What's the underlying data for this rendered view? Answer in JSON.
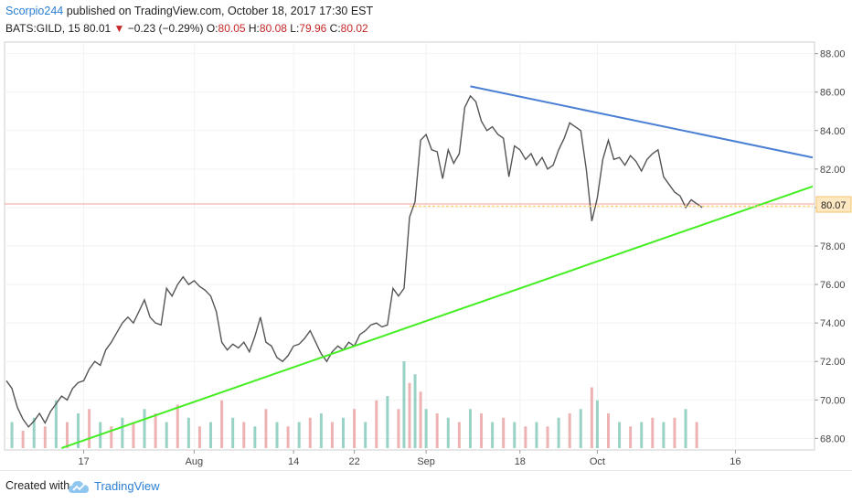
{
  "header": {
    "author": "Scorpio244",
    "published_text": "published on TradingView.com, October 18, 2017 17:30 EST"
  },
  "quote": {
    "symbol": "BATS:GILD, 15",
    "last": "80.01",
    "change": "−0.23 (−0.29%)",
    "o_label": "O:",
    "o_value": "80.05",
    "h_label": "H:",
    "h_value": "80.08",
    "l_label": "L:",
    "l_value": "79.96",
    "c_label": "C:",
    "c_value": "80.02",
    "down_color": "#c62828"
  },
  "footer": {
    "created_with": "Created with",
    "brand": "TradingView"
  },
  "chart_data": {
    "type": "line",
    "y_ticks": [
      68,
      70,
      72,
      74,
      76,
      78,
      80,
      82,
      84,
      86,
      88
    ],
    "y_tick_labels": [
      "68.00",
      "70.00",
      "72.00",
      "74.00",
      "76.00",
      "78.00",
      "80.00",
      "82.00",
      "84.00",
      "86.00",
      "88.00"
    ],
    "ylim": [
      67.4,
      88.6
    ],
    "x_tick_labels": [
      "17",
      "Aug",
      "14",
      "22",
      "Sep",
      "18",
      "Oct",
      "16"
    ],
    "x_tick_index": [
      14,
      34,
      52,
      63,
      76,
      93,
      107,
      132
    ],
    "current_price_label": "80.07",
    "current_price": 80.07,
    "price_series_color": "#555555",
    "price_path": [
      [
        0,
        71.0
      ],
      [
        1,
        70.6
      ],
      [
        2,
        69.6
      ],
      [
        3,
        69.0
      ],
      [
        4,
        68.6
      ],
      [
        5,
        68.9
      ],
      [
        6,
        69.3
      ],
      [
        7,
        68.8
      ],
      [
        8,
        69.4
      ],
      [
        9,
        69.8
      ],
      [
        10,
        70.2
      ],
      [
        11,
        70.0
      ],
      [
        12,
        70.6
      ],
      [
        13,
        70.9
      ],
      [
        14,
        71.0
      ],
      [
        15,
        71.6
      ],
      [
        16,
        72.0
      ],
      [
        17,
        71.8
      ],
      [
        18,
        72.6
      ],
      [
        19,
        73.0
      ],
      [
        20,
        73.5
      ],
      [
        21,
        74.0
      ],
      [
        22,
        74.3
      ],
      [
        23,
        74.0
      ],
      [
        24,
        74.6
      ],
      [
        25,
        75.2
      ],
      [
        26,
        74.3
      ],
      [
        27,
        74.0
      ],
      [
        28,
        73.9
      ],
      [
        29,
        75.8
      ],
      [
        30,
        75.4
      ],
      [
        31,
        76.0
      ],
      [
        32,
        76.4
      ],
      [
        33,
        76.0
      ],
      [
        34,
        76.2
      ],
      [
        35,
        75.9
      ],
      [
        36,
        75.7
      ],
      [
        37,
        75.4
      ],
      [
        38,
        74.6
      ],
      [
        39,
        73.0
      ],
      [
        40,
        72.6
      ],
      [
        41,
        72.9
      ],
      [
        42,
        72.7
      ],
      [
        43,
        73.0
      ],
      [
        44,
        72.5
      ],
      [
        45,
        73.3
      ],
      [
        46,
        74.3
      ],
      [
        47,
        73.0
      ],
      [
        48,
        72.8
      ],
      [
        49,
        72.2
      ],
      [
        50,
        72.0
      ],
      [
        51,
        72.3
      ],
      [
        52,
        72.8
      ],
      [
        53,
        72.9
      ],
      [
        54,
        73.2
      ],
      [
        55,
        73.6
      ],
      [
        56,
        73.0
      ],
      [
        57,
        72.4
      ],
      [
        58,
        72.0
      ],
      [
        59,
        72.5
      ],
      [
        60,
        72.8
      ],
      [
        61,
        72.6
      ],
      [
        62,
        73.0
      ],
      [
        63,
        72.8
      ],
      [
        64,
        73.4
      ],
      [
        65,
        73.6
      ],
      [
        66,
        73.9
      ],
      [
        67,
        74.0
      ],
      [
        68,
        73.8
      ],
      [
        69,
        73.9
      ],
      [
        70,
        75.8
      ],
      [
        71,
        75.4
      ],
      [
        72,
        75.8
      ],
      [
        73,
        79.5
      ],
      [
        74,
        80.3
      ],
      [
        75,
        83.5
      ],
      [
        76,
        83.8
      ],
      [
        77,
        83.0
      ],
      [
        78,
        82.9
      ],
      [
        79,
        81.5
      ],
      [
        80,
        83.0
      ],
      [
        81,
        82.3
      ],
      [
        82,
        82.8
      ],
      [
        83,
        85.2
      ],
      [
        84,
        85.8
      ],
      [
        85,
        85.5
      ],
      [
        86,
        84.5
      ],
      [
        87,
        84.0
      ],
      [
        88,
        84.2
      ],
      [
        89,
        83.8
      ],
      [
        90,
        83.6
      ],
      [
        91,
        81.6
      ],
      [
        92,
        83.2
      ],
      [
        93,
        83.0
      ],
      [
        94,
        82.5
      ],
      [
        95,
        82.8
      ],
      [
        96,
        82.2
      ],
      [
        97,
        82.6
      ],
      [
        98,
        82.0
      ],
      [
        99,
        82.2
      ],
      [
        100,
        83.0
      ],
      [
        101,
        83.6
      ],
      [
        102,
        84.4
      ],
      [
        103,
        84.2
      ],
      [
        104,
        84.0
      ],
      [
        105,
        82.0
      ],
      [
        106,
        79.3
      ],
      [
        107,
        80.5
      ],
      [
        108,
        82.5
      ],
      [
        109,
        83.5
      ],
      [
        110,
        82.5
      ],
      [
        111,
        82.6
      ],
      [
        112,
        82.2
      ],
      [
        113,
        82.7
      ],
      [
        114,
        82.4
      ],
      [
        115,
        81.9
      ],
      [
        116,
        82.5
      ],
      [
        117,
        82.8
      ],
      [
        118,
        83.0
      ],
      [
        119,
        81.6
      ],
      [
        120,
        81.2
      ],
      [
        121,
        80.8
      ],
      [
        122,
        80.6
      ],
      [
        123,
        80.0
      ],
      [
        124,
        80.4
      ],
      [
        125,
        80.2
      ],
      [
        126,
        80.0
      ]
    ],
    "lines": [
      {
        "name": "resistance-trendline",
        "color": "#4a7fd4",
        "from": [
          84,
          86.3
        ],
        "to": [
          146,
          82.6
        ]
      },
      {
        "name": "support-trendline",
        "color": "#44ee22",
        "from": [
          10,
          67.5
        ],
        "to": [
          146,
          81.1
        ]
      },
      {
        "name": "price-level-line",
        "color": "#ffd37a",
        "from": [
          73,
          80.07
        ],
        "to": [
          146,
          80.07
        ]
      }
    ],
    "volume_color_up": "#7fc7b8",
    "volume_color_down": "#e8a0a0",
    "volume_bars": [
      [
        1,
        0.3,
        1
      ],
      [
        3,
        0.2,
        0
      ],
      [
        5,
        0.35,
        1
      ],
      [
        7,
        0.25,
        0
      ],
      [
        9,
        0.55,
        1
      ],
      [
        11,
        0.3,
        0
      ],
      [
        13,
        0.4,
        1
      ],
      [
        15,
        0.45,
        0
      ],
      [
        17,
        0.3,
        1
      ],
      [
        19,
        0.25,
        0
      ],
      [
        21,
        0.35,
        1
      ],
      [
        23,
        0.3,
        0
      ],
      [
        25,
        0.45,
        1
      ],
      [
        27,
        0.4,
        0
      ],
      [
        29,
        0.3,
        1
      ],
      [
        31,
        0.5,
        0
      ],
      [
        33,
        0.35,
        1
      ],
      [
        35,
        0.25,
        0
      ],
      [
        37,
        0.3,
        1
      ],
      [
        39,
        0.55,
        0
      ],
      [
        41,
        0.35,
        1
      ],
      [
        43,
        0.3,
        0
      ],
      [
        45,
        0.25,
        1
      ],
      [
        47,
        0.45,
        0
      ],
      [
        49,
        0.3,
        1
      ],
      [
        51,
        0.25,
        0
      ],
      [
        53,
        0.3,
        1
      ],
      [
        55,
        0.35,
        0
      ],
      [
        57,
        0.4,
        1
      ],
      [
        59,
        0.3,
        0
      ],
      [
        61,
        0.35,
        1
      ],
      [
        63,
        0.45,
        0
      ],
      [
        65,
        0.3,
        1
      ],
      [
        67,
        0.55,
        0
      ],
      [
        69,
        0.6,
        1
      ],
      [
        71,
        0.45,
        0
      ],
      [
        72,
        1.0,
        1
      ],
      [
        73,
        0.75,
        0
      ],
      [
        74,
        0.85,
        1
      ],
      [
        75,
        0.65,
        0
      ],
      [
        76,
        0.45,
        1
      ],
      [
        78,
        0.4,
        0
      ],
      [
        80,
        0.35,
        1
      ],
      [
        82,
        0.3,
        0
      ],
      [
        84,
        0.45,
        1
      ],
      [
        86,
        0.4,
        0
      ],
      [
        88,
        0.3,
        1
      ],
      [
        90,
        0.35,
        0
      ],
      [
        92,
        0.3,
        1
      ],
      [
        94,
        0.25,
        0
      ],
      [
        96,
        0.3,
        1
      ],
      [
        98,
        0.25,
        0
      ],
      [
        100,
        0.35,
        1
      ],
      [
        102,
        0.4,
        0
      ],
      [
        104,
        0.45,
        1
      ],
      [
        106,
        0.7,
        0
      ],
      [
        107,
        0.55,
        1
      ],
      [
        109,
        0.4,
        0
      ],
      [
        111,
        0.3,
        1
      ],
      [
        113,
        0.25,
        0
      ],
      [
        115,
        0.3,
        1
      ],
      [
        117,
        0.35,
        0
      ],
      [
        119,
        0.3,
        1
      ],
      [
        121,
        0.35,
        0
      ],
      [
        123,
        0.45,
        1
      ],
      [
        125,
        0.3,
        0
      ]
    ]
  }
}
